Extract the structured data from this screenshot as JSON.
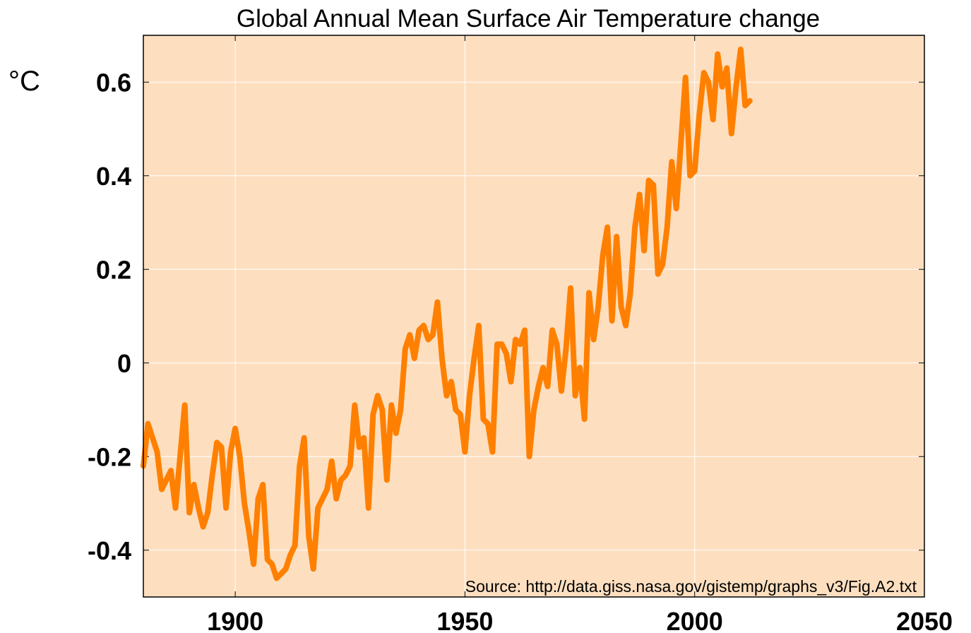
{
  "chart_data": {
    "type": "line",
    "title": "Global Annual Mean Surface Air Temperature change",
    "unit_label": "°C",
    "ylabel": "°C",
    "xlabel": "",
    "source_note": "Source: http://data.giss.nasa.gov/gistemp/graphs_v3/Fig.A2.txt",
    "xlim": [
      1880,
      2050
    ],
    "ylim": [
      -0.5,
      0.7
    ],
    "x_ticks": [
      1900,
      1950,
      2000,
      2050
    ],
    "x_tick_labels": [
      "1900",
      "1950",
      "2000",
      "2050"
    ],
    "y_ticks": [
      -0.4,
      -0.2,
      0,
      0.2,
      0.4,
      0.6
    ],
    "y_tick_labels": [
      "-0.4",
      "-0.2",
      "0",
      "0.2",
      "0.4",
      "0.6"
    ],
    "grid": true,
    "colors": {
      "background": "#FDDFC0",
      "series": "#FF8000",
      "grid": "#FFFFFF"
    },
    "series": [
      {
        "x": [
          1880,
          1881,
          1882,
          1883,
          1884,
          1885,
          1886,
          1887,
          1888,
          1889,
          1890,
          1891,
          1892,
          1893,
          1894,
          1895,
          1896,
          1897,
          1898,
          1899,
          1900,
          1901,
          1902,
          1903,
          1904,
          1905,
          1906,
          1907,
          1908,
          1909,
          1910,
          1911,
          1912,
          1913,
          1914,
          1915,
          1916,
          1917,
          1918,
          1919,
          1920,
          1921,
          1922,
          1923,
          1924,
          1925,
          1926,
          1927,
          1928,
          1929,
          1930,
          1931,
          1932,
          1933,
          1934,
          1935,
          1936,
          1937,
          1938,
          1939,
          1940,
          1941,
          1942,
          1943,
          1944,
          1945,
          1946,
          1947,
          1948,
          1949,
          1950,
          1951,
          1952,
          1953,
          1954,
          1955,
          1956,
          1957,
          1958,
          1959,
          1960,
          1961,
          1962,
          1963,
          1964,
          1965,
          1966,
          1967,
          1968,
          1969,
          1970,
          1971,
          1972,
          1973,
          1974,
          1975,
          1976,
          1977,
          1978,
          1979,
          1980,
          1981,
          1982,
          1983,
          1984,
          1985,
          1986,
          1987,
          1988,
          1989,
          1990,
          1991,
          1992,
          1993,
          1994,
          1995,
          1996,
          1997,
          1998,
          1999,
          2000,
          2001,
          2002,
          2003,
          2004,
          2005,
          2006,
          2007,
          2008,
          2009,
          2010,
          2011,
          2012
        ],
        "values": [
          -0.22,
          -0.13,
          -0.16,
          -0.19,
          -0.27,
          -0.25,
          -0.23,
          -0.31,
          -0.2,
          -0.09,
          -0.32,
          -0.26,
          -0.31,
          -0.35,
          -0.32,
          -0.24,
          -0.17,
          -0.18,
          -0.31,
          -0.19,
          -0.14,
          -0.2,
          -0.3,
          -0.36,
          -0.43,
          -0.29,
          -0.26,
          -0.42,
          -0.43,
          -0.46,
          -0.45,
          -0.44,
          -0.41,
          -0.39,
          -0.22,
          -0.16,
          -0.37,
          -0.44,
          -0.31,
          -0.29,
          -0.27,
          -0.21,
          -0.29,
          -0.25,
          -0.24,
          -0.22,
          -0.09,
          -0.18,
          -0.16,
          -0.31,
          -0.11,
          -0.07,
          -0.1,
          -0.25,
          -0.09,
          -0.15,
          -0.1,
          0.03,
          0.06,
          0.01,
          0.07,
          0.08,
          0.05,
          0.06,
          0.13,
          0.01,
          -0.07,
          -0.04,
          -0.1,
          -0.11,
          -0.19,
          -0.07,
          0.01,
          0.08,
          -0.12,
          -0.13,
          -0.19,
          0.04,
          0.04,
          0.02,
          -0.04,
          0.05,
          0.04,
          0.07,
          -0.2,
          -0.1,
          -0.05,
          -0.01,
          -0.05,
          0.07,
          0.04,
          -0.06,
          0.03,
          0.16,
          -0.07,
          -0.01,
          -0.12,
          0.15,
          0.05,
          0.12,
          0.23,
          0.29,
          0.09,
          0.27,
          0.12,
          0.08,
          0.15,
          0.29,
          0.36,
          0.24,
          0.39,
          0.38,
          0.19,
          0.21,
          0.29,
          0.43,
          0.33,
          0.47,
          0.61,
          0.4,
          0.41,
          0.53,
          0.62,
          0.6,
          0.52,
          0.66,
          0.59,
          0.63,
          0.49,
          0.59,
          0.67,
          0.55,
          0.56
        ]
      }
    ]
  }
}
